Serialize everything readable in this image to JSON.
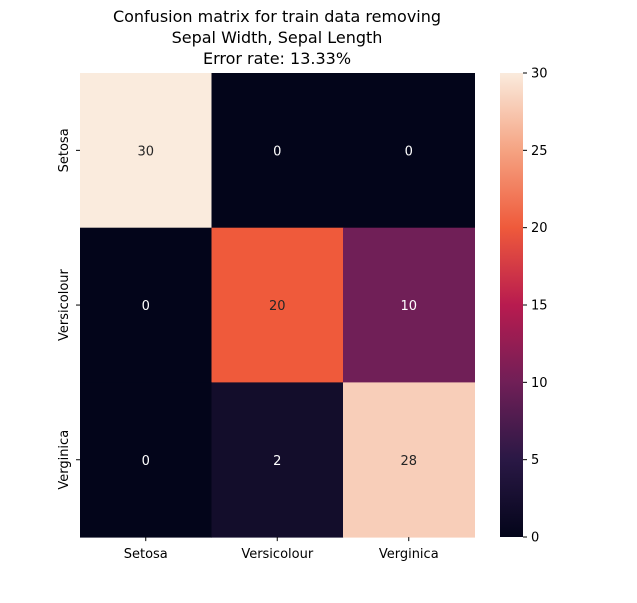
{
  "chart_data": {
    "type": "heatmap",
    "title_lines": [
      "Confusion matrix for train data removing",
      "Sepal Width, Sepal Length",
      "Error rate: 13.33%"
    ],
    "x_categories": [
      "Setosa",
      "Versicolour",
      "Verginica"
    ],
    "y_categories": [
      "Setosa",
      "Versicolour",
      "Verginica"
    ],
    "values": [
      [
        30,
        0,
        0
      ],
      [
        0,
        20,
        10
      ],
      [
        0,
        2,
        28
      ]
    ],
    "colorbar": {
      "range": [
        0,
        30
      ],
      "ticks": [
        0,
        5,
        10,
        15,
        20,
        25,
        30
      ],
      "colormap": "rocket"
    },
    "xlabel": "",
    "ylabel": ""
  }
}
